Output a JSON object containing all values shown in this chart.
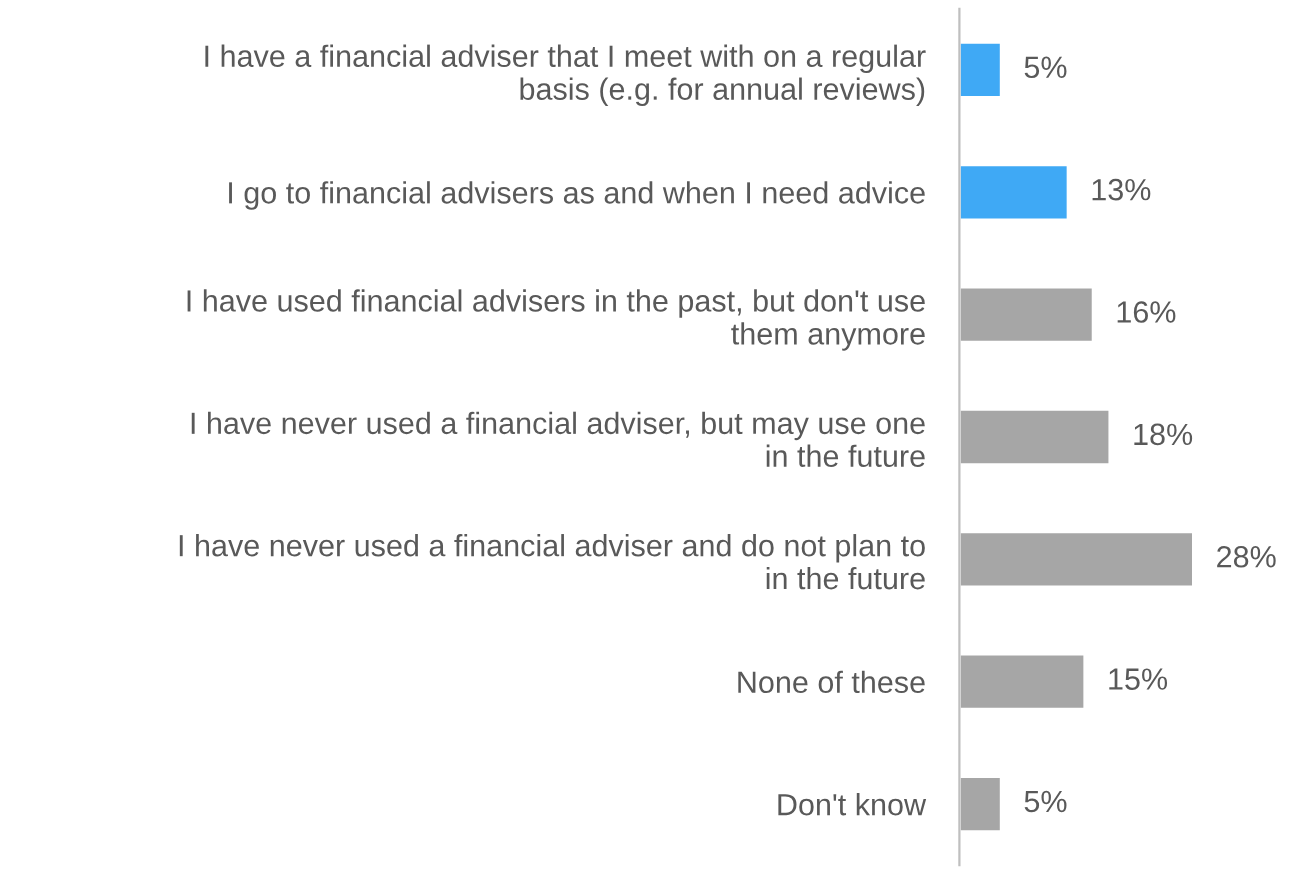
{
  "chart_data": {
    "type": "bar",
    "orientation": "horizontal",
    "categories": [
      "I have a financial adviser that I meet with on a regular\nbasis (e.g. for annual reviews)",
      "I go to financial advisers as and when I need advice",
      "I have used financial advisers in the past, but don't use\nthem anymore",
      "I have never used a financial adviser, but may use one\nin the future",
      "I have never used a financial adviser and do not plan to\nin the future",
      "None of these",
      "Don't know"
    ],
    "values": [
      5,
      13,
      16,
      18,
      28,
      15,
      5
    ],
    "colors": [
      "#3fa9f5",
      "#3fa9f5",
      "#a6a6a6",
      "#a6a6a6",
      "#a6a6a6",
      "#a6a6a6",
      "#a6a6a6"
    ],
    "value_labels": [
      "5%",
      "13%",
      "16%",
      "18%",
      "28%",
      "15%",
      "5%"
    ],
    "grid": false,
    "legend": false
  }
}
